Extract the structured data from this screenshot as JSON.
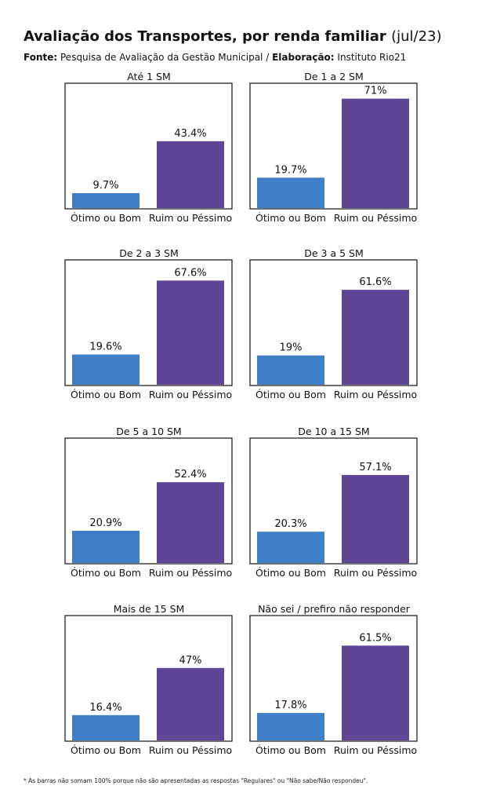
{
  "header": {
    "title": "Avaliação dos Transportes, por renda familiar",
    "period": "(jul/23)",
    "source_label": "Fonte:",
    "source_text": "Pesquisa de Avaliação da Gestão Municipal /",
    "credit_label": "Elaboração:",
    "credit_text": "Instituto Rio21"
  },
  "colors": {
    "good": "#3f7fc7",
    "bad": "#5e4595"
  },
  "chart_data": [
    {
      "type": "bar",
      "title": "Até 1 SM",
      "categories": [
        "Ótimo ou Bom",
        "Ruim ou Péssimo"
      ],
      "values": [
        9.7,
        43.4
      ],
      "labels": [
        "9.7%",
        "43.4%"
      ],
      "ylim": [
        0,
        80
      ]
    },
    {
      "type": "bar",
      "title": "De 1 a 2 SM",
      "categories": [
        "Ótimo ou Bom",
        "Ruim ou Péssimo"
      ],
      "values": [
        19.7,
        71
      ],
      "labels": [
        "19.7%",
        "71%"
      ],
      "ylim": [
        0,
        80
      ]
    },
    {
      "type": "bar",
      "title": "De 2 a 3 SM",
      "categories": [
        "Ótimo ou Bom",
        "Ruim ou Péssimo"
      ],
      "values": [
        19.6,
        67.6
      ],
      "labels": [
        "19.6%",
        "67.6%"
      ],
      "ylim": [
        0,
        80
      ]
    },
    {
      "type": "bar",
      "title": "De 3 a 5 SM",
      "categories": [
        "Ótimo ou Bom",
        "Ruim ou Péssimo"
      ],
      "values": [
        19,
        61.6
      ],
      "labels": [
        "19%",
        "61.6%"
      ],
      "ylim": [
        0,
        80
      ]
    },
    {
      "type": "bar",
      "title": "De 5 a 10 SM",
      "categories": [
        "Ótimo ou Bom",
        "Ruim ou Péssimo"
      ],
      "values": [
        20.9,
        52.4
      ],
      "labels": [
        "20.9%",
        "52.4%"
      ],
      "ylim": [
        0,
        80
      ]
    },
    {
      "type": "bar",
      "title": "De 10 a 15 SM",
      "categories": [
        "Ótimo ou Bom",
        "Ruim ou Péssimo"
      ],
      "values": [
        20.3,
        57.1
      ],
      "labels": [
        "20.3%",
        "57.1%"
      ],
      "ylim": [
        0,
        80
      ]
    },
    {
      "type": "bar",
      "title": "Mais de 15 SM",
      "categories": [
        "Ótimo ou Bom",
        "Ruim ou Péssimo"
      ],
      "values": [
        16.4,
        47
      ],
      "labels": [
        "16.4%",
        "47%"
      ],
      "ylim": [
        0,
        80
      ]
    },
    {
      "type": "bar",
      "title": "Não sei / prefiro não responder",
      "categories": [
        "Ótimo ou Bom",
        "Ruim ou Péssimo"
      ],
      "values": [
        17.8,
        61.5
      ],
      "labels": [
        "17.8%",
        "61.5%"
      ],
      "ylim": [
        0,
        80
      ]
    }
  ],
  "footnote": "* As barras não somam 100% porque não são apresentadas as respostas \"Regulares\" ou \"Não sabe/Não respondeu\"."
}
